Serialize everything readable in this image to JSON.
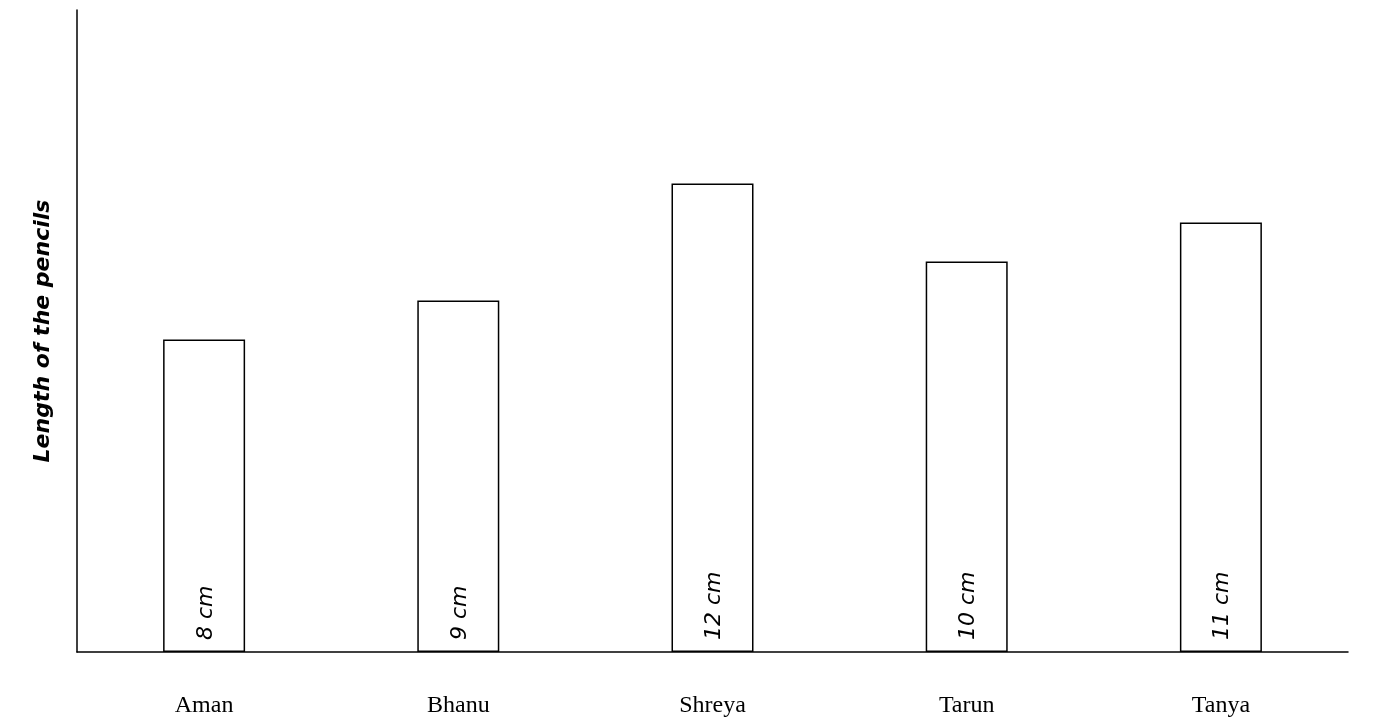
{
  "chart_data": {
    "type": "bar",
    "ylabel": "Length of the pencils",
    "categories": [
      "Aman",
      "Bhanu",
      "Shreya",
      "Tarun",
      "Tanya"
    ],
    "values": [
      8,
      9,
      12,
      10,
      11
    ],
    "value_labels": [
      "8 cm",
      "9 cm",
      "12 cm",
      "10 cm",
      "11 cm"
    ],
    "color": "#ffffff",
    "grid": false,
    "tick_labels": "x"
  }
}
